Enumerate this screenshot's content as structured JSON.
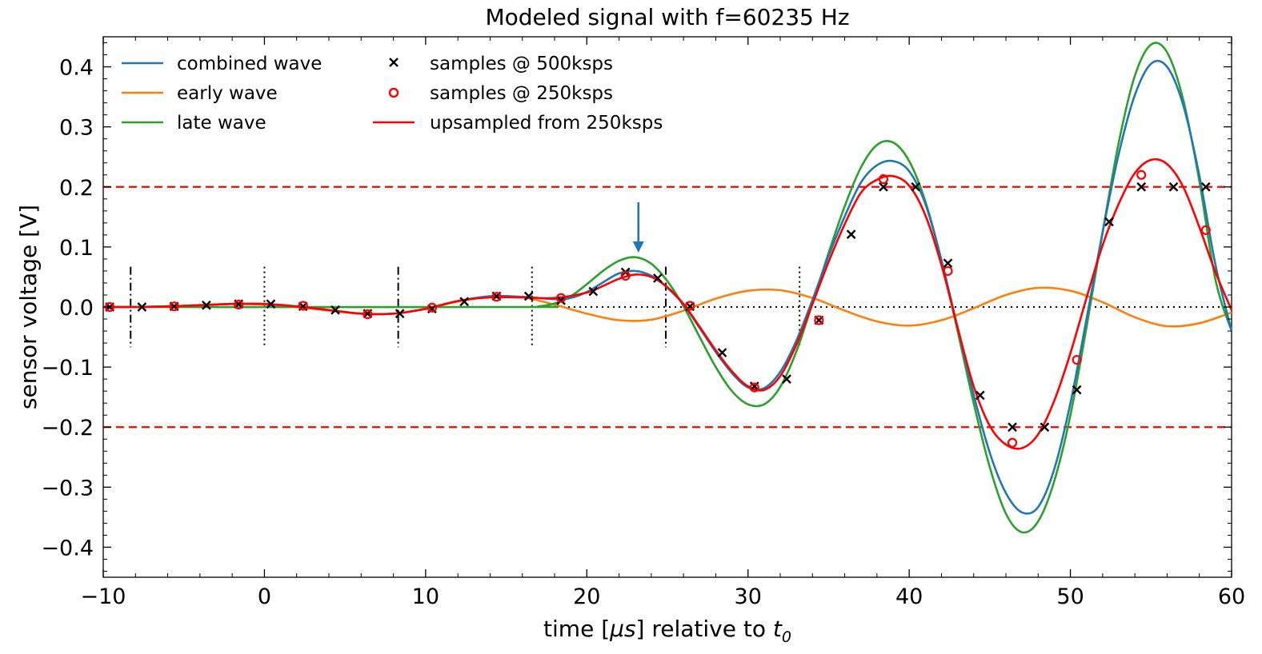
{
  "chart_data": {
    "type": "line",
    "title": "Modeled signal with f=60235 Hz",
    "xlabel_prefix": "time [",
    "xlabel_mu": "μs",
    "xlabel_mid": "] relative to ",
    "xlabel_t": "t",
    "xlabel_sub": "0",
    "ylabel": "sensor voltage [V]",
    "xlim": [
      -10,
      60
    ],
    "ylim": [
      -0.45,
      0.45
    ],
    "x_ticks": [
      -10,
      0,
      10,
      20,
      30,
      40,
      50,
      60
    ],
    "x_tick_labels": [
      "−10",
      "0",
      "10",
      "20",
      "30",
      "40",
      "50",
      "60"
    ],
    "y_ticks": [
      -0.4,
      -0.3,
      -0.2,
      -0.1,
      0.0,
      0.1,
      0.2,
      0.3,
      0.4
    ],
    "y_tick_labels": [
      "−0.4",
      "−0.3",
      "−0.2",
      "−0.1",
      "0.0",
      "0.1",
      "0.2",
      "0.3",
      "0.4"
    ],
    "frequency_hz": 60235,
    "threshold_levels": [
      0.2,
      -0.2
    ],
    "zero_line": 0,
    "dashdot_markers_x": [
      -8.3,
      8.3,
      24.9
    ],
    "dotted_markers_x": [
      0,
      16.6,
      33.2
    ],
    "arrow_x": 23.2,
    "legend": {
      "combined": "combined wave",
      "early": "early wave",
      "late": "late wave",
      "s500": "samples @ 500ksps",
      "s250": "samples @ 250ksps",
      "ups": "upsampled from 250ksps"
    },
    "series": [
      {
        "name": "combined wave",
        "color": "#1f77b4",
        "x": [
          -10,
          -8,
          -6,
          -4,
          -2,
          0,
          2,
          4,
          6,
          8,
          10,
          12,
          14,
          16,
          18,
          19,
          20,
          21,
          22,
          23,
          24,
          25,
          26,
          27,
          28,
          29,
          30,
          31,
          32,
          33,
          34,
          35,
          36,
          37,
          38,
          39,
          40,
          41,
          42,
          43,
          44,
          45,
          46,
          47,
          48,
          49,
          50,
          51,
          52,
          53,
          54,
          55,
          56,
          57,
          58,
          59,
          60
        ],
        "y": [
          0,
          0,
          0.001,
          0.003,
          0.005,
          0.005,
          0.001,
          -0.005,
          -0.011,
          -0.011,
          -0.003,
          0.01,
          0.018,
          0.017,
          0.013,
          0.015,
          0.025,
          0.041,
          0.056,
          0.06,
          0.052,
          0.032,
          0.004,
          -0.035,
          -0.075,
          -0.11,
          -0.134,
          -0.135,
          -0.108,
          -0.056,
          0.012,
          0.085,
          0.151,
          0.207,
          0.236,
          0.243,
          0.226,
          0.172,
          0.078,
          -0.034,
          -0.146,
          -0.243,
          -0.31,
          -0.342,
          -0.333,
          -0.27,
          -0.16,
          -0.02,
          0.125,
          0.255,
          0.353,
          0.405,
          0.4,
          0.336,
          0.219,
          0.07,
          -0.04
        ]
      },
      {
        "name": "early wave",
        "color": "#ff7f0e",
        "x": [
          -10,
          -8,
          -6,
          -4,
          -2,
          0,
          2,
          4,
          6,
          8,
          10,
          12,
          14,
          16,
          18,
          20,
          22,
          24,
          26,
          28,
          30,
          32,
          34,
          36,
          38,
          40,
          42,
          44,
          46,
          48,
          50,
          52,
          54,
          56,
          58,
          60
        ],
        "y": [
          0,
          0,
          0.001,
          0.003,
          0.005,
          0.004,
          0.0,
          -0.006,
          -0.011,
          -0.011,
          -0.003,
          0.009,
          0.017,
          0.016,
          0.004,
          -0.011,
          -0.022,
          -0.021,
          -0.006,
          0.014,
          0.027,
          0.028,
          0.015,
          -0.006,
          -0.024,
          -0.031,
          -0.022,
          -0.002,
          0.02,
          0.032,
          0.027,
          0.008,
          -0.017,
          -0.032,
          -0.027,
          -0.009
        ]
      },
      {
        "name": "late wave",
        "color": "#2ca02c",
        "x": [
          -10,
          16,
          17,
          18,
          19,
          20,
          21,
          22,
          23,
          24,
          25,
          26,
          27,
          28,
          29,
          30,
          31,
          32,
          33,
          34,
          35,
          36,
          37,
          38,
          39,
          40,
          41,
          42,
          43,
          44,
          45,
          46,
          47,
          48,
          49,
          50,
          51,
          52,
          53,
          54,
          55,
          56,
          57,
          58,
          59,
          60
        ],
        "y": [
          0,
          0,
          0.001,
          0.006,
          0.018,
          0.038,
          0.06,
          0.077,
          0.083,
          0.072,
          0.043,
          0.001,
          -0.05,
          -0.1,
          -0.14,
          -0.162,
          -0.162,
          -0.133,
          -0.074,
          0.006,
          0.09,
          0.168,
          0.232,
          0.27,
          0.274,
          0.243,
          0.176,
          0.078,
          -0.04,
          -0.16,
          -0.267,
          -0.344,
          -0.375,
          -0.357,
          -0.29,
          -0.18,
          -0.034,
          0.125,
          0.274,
          0.385,
          0.437,
          0.424,
          0.345,
          0.21,
          0.045,
          -0.04
        ]
      },
      {
        "name": "upsampled from 250ksps",
        "color": "#ff0000",
        "x": [
          -10,
          -8,
          -6,
          -4,
          -2,
          0,
          2,
          4,
          6,
          8,
          10,
          12,
          14,
          16,
          18,
          20,
          21,
          22,
          23,
          24,
          25,
          26,
          27,
          28,
          29,
          30,
          31,
          32,
          33,
          34,
          35,
          36,
          37,
          38,
          39,
          40,
          41,
          42,
          43,
          44,
          45,
          46,
          47,
          48,
          49,
          50,
          51,
          52,
          53,
          54,
          55,
          56,
          57,
          58,
          59,
          60
        ],
        "y": [
          0,
          0,
          0.001,
          0.003,
          0.005,
          0.005,
          0.001,
          -0.005,
          -0.011,
          -0.011,
          -0.003,
          0.01,
          0.016,
          0.016,
          0.015,
          0.024,
          0.035,
          0.047,
          0.054,
          0.05,
          0.033,
          0.005,
          -0.033,
          -0.072,
          -0.107,
          -0.132,
          -0.138,
          -0.115,
          -0.063,
          0.005,
          0.075,
          0.138,
          0.19,
          0.212,
          0.218,
          0.202,
          0.153,
          0.07,
          -0.034,
          -0.132,
          -0.198,
          -0.229,
          -0.235,
          -0.212,
          -0.156,
          -0.077,
          0.015,
          0.103,
          0.172,
          0.223,
          0.245,
          0.238,
          0.2,
          0.133,
          0.058,
          -0.005
        ]
      }
    ],
    "samples_500ksps": {
      "name": "samples @ 500ksps",
      "x": [
        -9.6,
        -7.6,
        -5.6,
        -3.6,
        -1.6,
        0.4,
        2.4,
        4.4,
        6.4,
        8.4,
        10.4,
        12.4,
        14.4,
        16.4,
        18.4,
        20.4,
        22.4,
        24.4,
        26.4,
        28.4,
        30.4,
        32.4,
        34.4,
        36.4,
        38.4,
        40.4,
        42.4,
        44.4,
        46.4,
        48.4,
        50.4,
        52.4,
        54.4,
        56.4,
        58.4
      ],
      "y": [
        0,
        0.0,
        0.001,
        0.003,
        0.005,
        0.005,
        0.001,
        -0.005,
        -0.011,
        -0.011,
        -0.003,
        0.009,
        0.018,
        0.018,
        0.011,
        0.026,
        0.058,
        0.048,
        0.001,
        -0.076,
        -0.132,
        -0.12,
        -0.022,
        0.121,
        0.2,
        0.2,
        0.073,
        -0.147,
        -0.2,
        -0.2,
        -0.138,
        0.142,
        0.2,
        0.2,
        0.2
      ]
    },
    "samples_250ksps": {
      "name": "samples @ 250ksps",
      "x": [
        -9.6,
        -5.6,
        -1.6,
        2.4,
        6.4,
        10.4,
        14.4,
        18.4,
        22.4,
        26.4,
        30.4,
        34.4,
        38.4,
        42.4,
        46.4,
        50.4,
        54.4,
        58.4
      ],
      "y": [
        0,
        0.001,
        0.004,
        0.002,
        -0.012,
        -0.001,
        0.017,
        0.015,
        0.052,
        0.002,
        -0.134,
        -0.022,
        0.213,
        0.06,
        -0.226,
        -0.088,
        0.22,
        0.128
      ]
    }
  }
}
